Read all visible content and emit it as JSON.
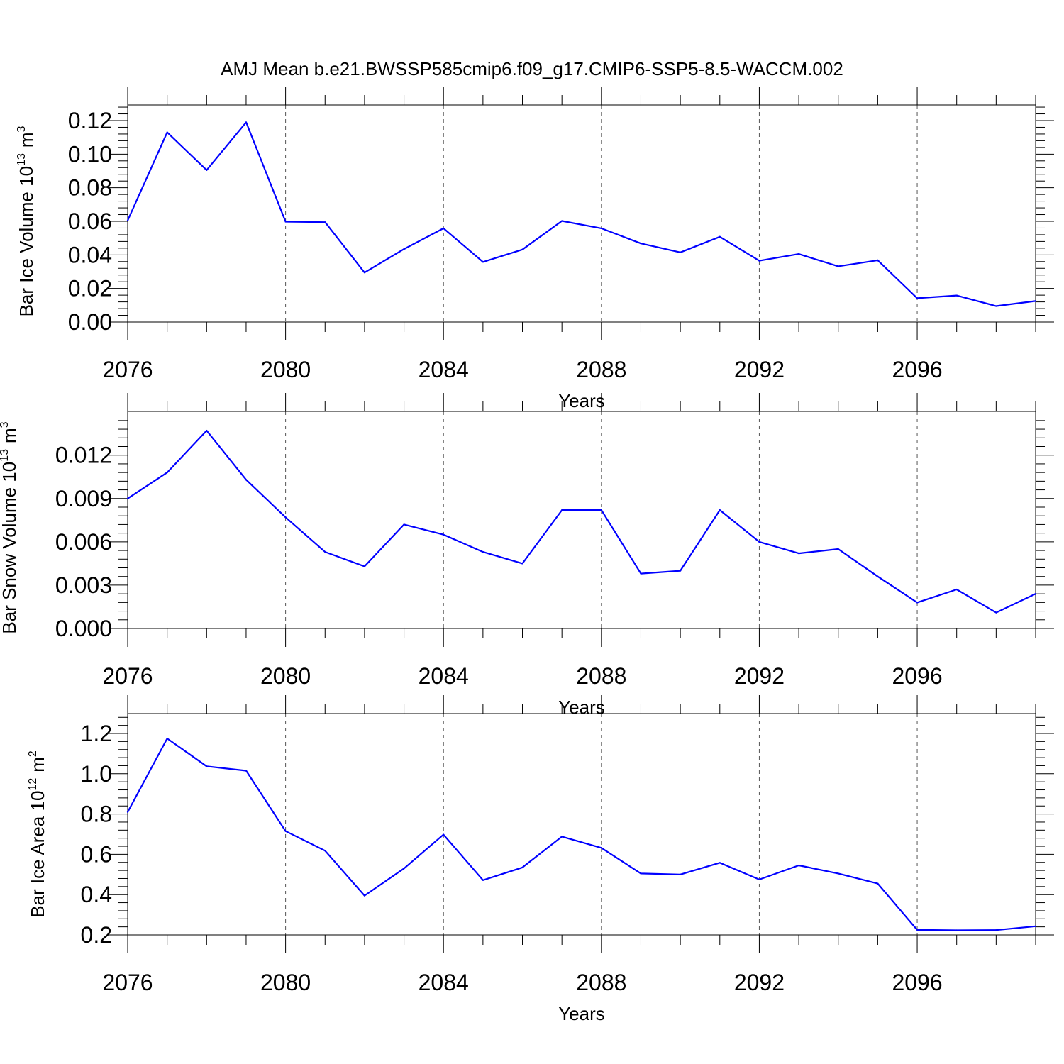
{
  "chart_data": {
    "title": "AMJ Mean b.e21.BWSSP585cmip6.f09_g17.CMIP6-SSP5-8.5-WACCM.002",
    "line_color": "#0000ff",
    "panels": [
      {
        "type": "line",
        "ylabel_main": "Bar Ice Volume 10",
        "ylabel_exp": "13",
        "ylabel_unit": "m",
        "ylabel_unit_exp": "3",
        "xlabel": "Years",
        "xlim": [
          2076,
          2099
        ],
        "ylim": [
          0,
          0.12
        ],
        "xticks": [
          2076,
          2080,
          2084,
          2088,
          2092,
          2096
        ],
        "yticks": [
          0,
          0.02,
          0.04,
          0.06,
          0.08,
          0.1,
          0.12
        ],
        "ytick_labels": [
          "0.00",
          "0.02",
          "0.04",
          "0.06",
          "0.08",
          "0.10",
          "0.12"
        ],
        "grid": "vertical dashed at major x ticks",
        "x": [
          2076,
          2077,
          2078,
          2079,
          2080,
          2081,
          2082,
          2083,
          2084,
          2085,
          2086,
          2087,
          2088,
          2089,
          2090,
          2091,
          2092,
          2093,
          2094,
          2095,
          2096,
          2097,
          2098,
          2099
        ],
        "values": [
          0.0605,
          0.113,
          0.0905,
          0.119,
          0.0598,
          0.0595,
          0.0295,
          0.0435,
          0.0558,
          0.0358,
          0.0432,
          0.0602,
          0.0558,
          0.0468,
          0.0415,
          0.0508,
          0.0365,
          0.0405,
          0.0332,
          0.0368,
          0.0142,
          0.0158,
          0.0095,
          0.0125
        ]
      },
      {
        "type": "line",
        "ylabel_main": "Bar Snow Volume 10",
        "ylabel_exp": "13",
        "ylabel_unit": "m",
        "ylabel_unit_exp": "3",
        "xlabel": "Years",
        "xlim": [
          2076,
          2099
        ],
        "ylim": [
          0,
          0.014
        ],
        "xticks": [
          2076,
          2080,
          2084,
          2088,
          2092,
          2096
        ],
        "yticks": [
          0,
          0.003,
          0.006,
          0.009,
          0.012
        ],
        "ytick_labels": [
          "0.000",
          "0.003",
          "0.006",
          "0.009",
          "0.012"
        ],
        "grid": "vertical dashed at major x ticks",
        "x": [
          2076,
          2077,
          2078,
          2079,
          2080,
          2081,
          2082,
          2083,
          2084,
          2085,
          2086,
          2087,
          2088,
          2089,
          2090,
          2091,
          2092,
          2093,
          2094,
          2095,
          2096,
          2097,
          2098,
          2099
        ],
        "values": [
          0.009,
          0.0108,
          0.0137,
          0.0103,
          0.0077,
          0.0053,
          0.0043,
          0.0072,
          0.0065,
          0.0053,
          0.0045,
          0.0082,
          0.0082,
          0.0038,
          0.004,
          0.0082,
          0.006,
          0.0052,
          0.0055,
          0.0036,
          0.0018,
          0.0027,
          0.0011,
          0.0024
        ]
      },
      {
        "type": "line",
        "ylabel_main": "Bar Ice Area 10",
        "ylabel_exp": "12",
        "ylabel_unit": "m",
        "ylabel_unit_exp": "2",
        "xlabel": "Years",
        "xlim": [
          2076,
          2099
        ],
        "ylim": [
          0.2,
          1.2
        ],
        "xticks": [
          2076,
          2080,
          2084,
          2088,
          2092,
          2096
        ],
        "yticks": [
          0.2,
          0.4,
          0.6,
          0.8,
          1.0,
          1.2
        ],
        "ytick_labels": [
          "0.2",
          "0.4",
          "0.6",
          "0.8",
          "1.0",
          "1.2"
        ],
        "grid": "vertical dashed at major x ticks",
        "x": [
          2076,
          2077,
          2078,
          2079,
          2080,
          2081,
          2082,
          2083,
          2084,
          2085,
          2086,
          2087,
          2088,
          2089,
          2090,
          2091,
          2092,
          2093,
          2094,
          2095,
          2096,
          2097,
          2098,
          2099
        ],
        "values": [
          0.81,
          1.175,
          1.037,
          1.015,
          0.715,
          0.618,
          0.395,
          0.53,
          0.698,
          0.472,
          0.535,
          0.688,
          0.632,
          0.505,
          0.5,
          0.558,
          0.475,
          0.545,
          0.505,
          0.455,
          0.225,
          0.223,
          0.224,
          0.243
        ]
      }
    ]
  }
}
